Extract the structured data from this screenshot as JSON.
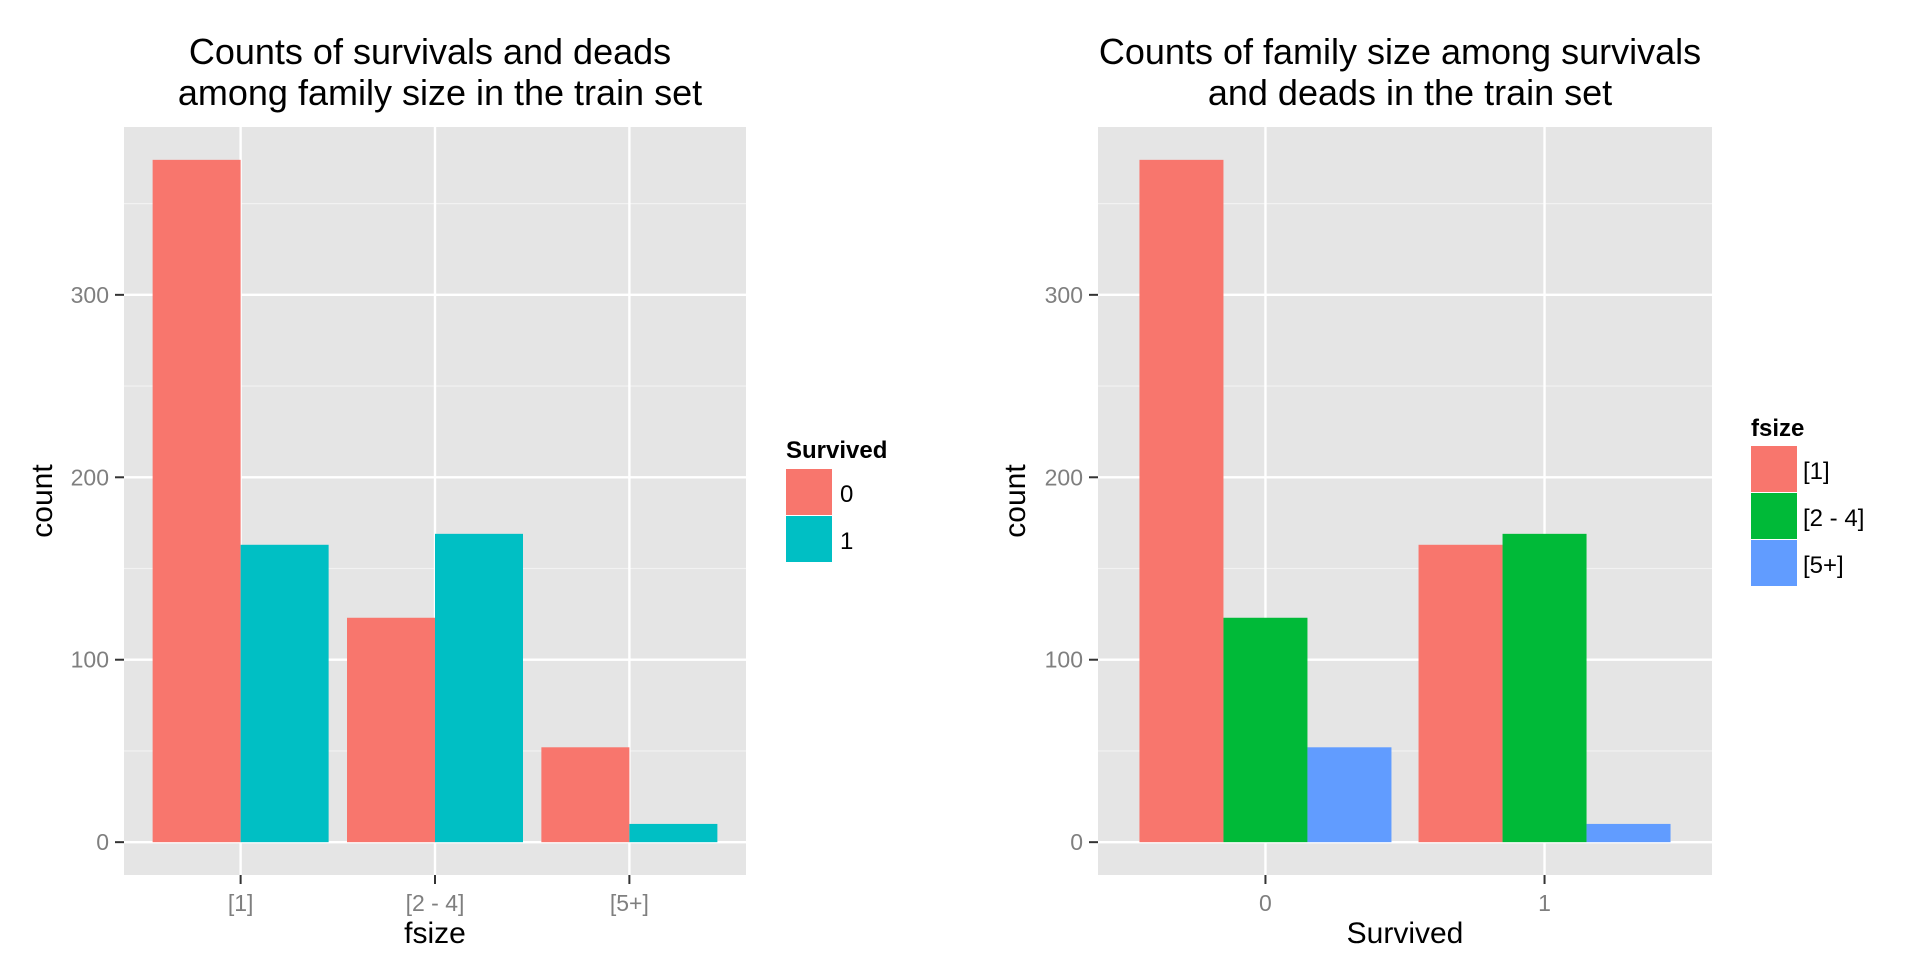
{
  "chart_data": [
    {
      "type": "bar",
      "title_lines": [
        "Counts of survivals and deads",
        "among family size in the train set"
      ],
      "xlabel": "fsize",
      "ylabel": "count",
      "categories": [
        "[1]",
        "[2 - 4]",
        "[5+]"
      ],
      "series": [
        {
          "name": "0",
          "color": "#F8766D",
          "values": [
            374,
            123,
            52
          ]
        },
        {
          "name": "1",
          "color": "#00BFC4",
          "values": [
            163,
            169,
            10
          ]
        }
      ],
      "ylim": [
        -18,
        392
      ],
      "yticks": [
        0,
        100,
        200,
        300
      ],
      "grid": true,
      "legend": {
        "title": "Survived",
        "position": "right"
      }
    },
    {
      "type": "bar",
      "title_lines": [
        "Counts of family size among survivals",
        "and deads in the train set"
      ],
      "xlabel": "Survived",
      "ylabel": "count",
      "categories": [
        "0",
        "1"
      ],
      "series": [
        {
          "name": "[1]",
          "color": "#F8766D",
          "values": [
            374,
            163
          ]
        },
        {
          "name": "[2 - 4]",
          "color": "#00BA38",
          "values": [
            123,
            169
          ]
        },
        {
          "name": "[5+]",
          "color": "#619CFF",
          "values": [
            52,
            10
          ]
        }
      ],
      "ylim": [
        -18,
        392
      ],
      "yticks": [
        0,
        100,
        200,
        300
      ],
      "grid": true,
      "legend": {
        "title": "fsize",
        "position": "right"
      }
    }
  ]
}
